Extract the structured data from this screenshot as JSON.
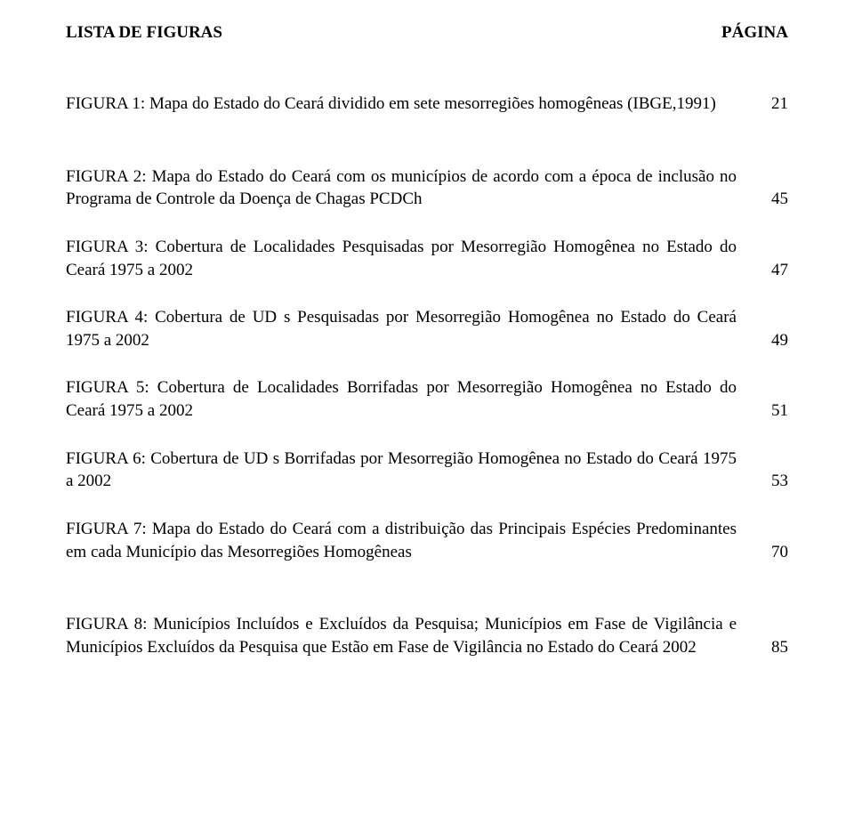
{
  "header": {
    "left": "LISTA DE FIGURAS",
    "right": "PÁGINA"
  },
  "entries": [
    {
      "text": "FIGURA 1: Mapa do Estado do Ceará dividido em sete mesorregiões homogêneas (IBGE,1991)",
      "page": "21",
      "gap_after": true
    },
    {
      "text": "FIGURA 2: Mapa do Estado do Ceará com os municípios de acordo com a época de inclusão no Programa de Controle da Doença de Chagas PCDCh",
      "page": "45"
    },
    {
      "text": "FIGURA 3: Cobertura de Localidades Pesquisadas por Mesorregião Homogênea no Estado do Ceará 1975 a 2002",
      "page": "47"
    },
    {
      "text": "FIGURA 4: Cobertura de UD s Pesquisadas por Mesorregião Homogênea no Estado do Ceará 1975 a 2002",
      "page": "49"
    },
    {
      "text": "FIGURA 5: Cobertura de Localidades Borrifadas por Mesorregião Homogênea no Estado do Ceará 1975 a 2002",
      "page": "51"
    },
    {
      "text": "FIGURA 6: Cobertura de UD s Borrifadas por Mesorregião Homogênea no Estado do Ceará 1975 a 2002",
      "page": "53"
    },
    {
      "text": "FIGURA 7: Mapa do Estado do Ceará com a distribuição das Principais Espécies Predominantes em cada Município das Mesorregiões Homogêneas",
      "page": "70",
      "gap_after": true
    },
    {
      "text": "FIGURA 8: Municípios Incluídos e Excluídos da Pesquisa; Municípios em Fase de Vigilância e Municípios Excluídos da Pesquisa que Estão em Fase de Vigilância no Estado do Ceará 2002",
      "page": "85"
    }
  ],
  "colors": {
    "text": "#000000",
    "background": "#ffffff"
  },
  "typography": {
    "font_family": "Times New Roman",
    "body_fontsize_pt": 14,
    "header_fontsize_pt": 14,
    "header_weight": "bold"
  }
}
